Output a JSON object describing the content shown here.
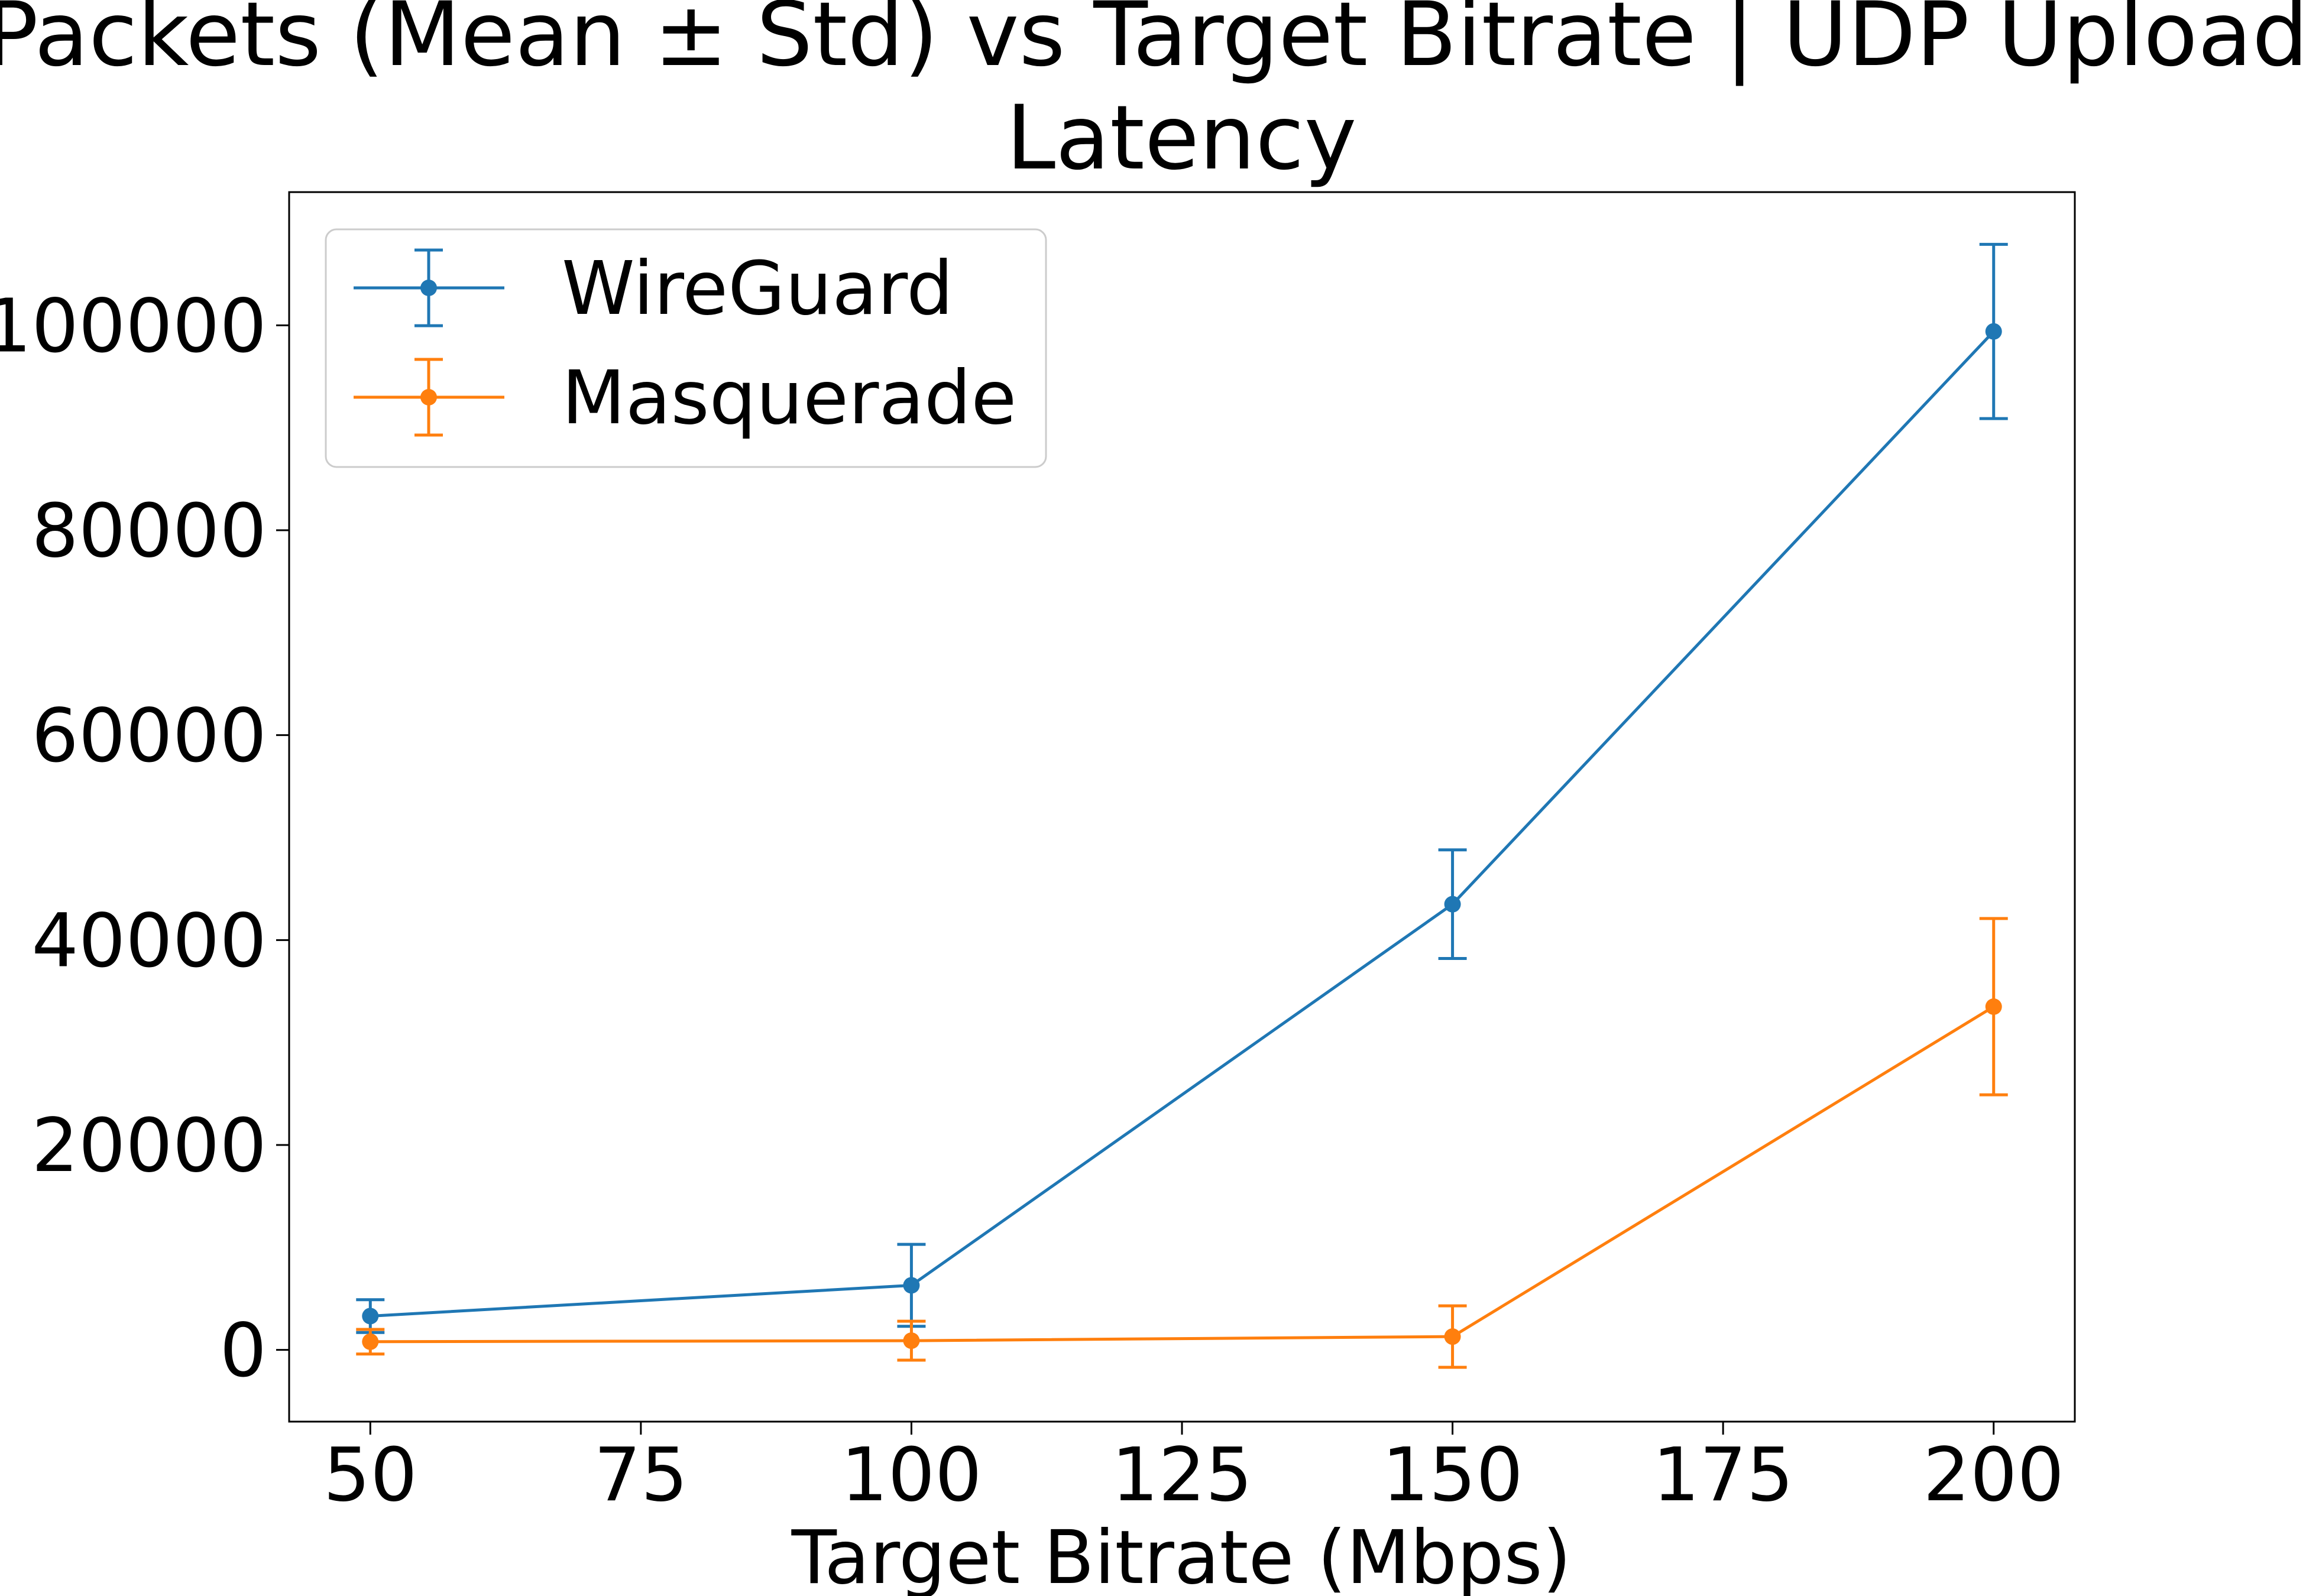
{
  "chart_data": {
    "type": "line",
    "title_line1": "Lost Packets (Mean ± Std) vs Target Bitrate | UDP Upload Loss |",
    "title_line2": "Latency",
    "xlabel": "Target Bitrate (Mbps)",
    "ylabel": "",
    "xlim": [
      42.5,
      207.5
    ],
    "ylim": [
      -7000,
      113000
    ],
    "xticks": [
      50,
      75,
      100,
      125,
      150,
      175,
      200
    ],
    "yticks": [
      0,
      20000,
      40000,
      60000,
      80000,
      100000
    ],
    "grid": false,
    "legend_position": "top-left",
    "x": [
      50,
      100,
      150,
      200
    ],
    "series": [
      {
        "name": "WireGuard",
        "color": "#1f77b4",
        "values": [
          3300,
          6300,
          43500,
          99400
        ],
        "std": [
          1600,
          4000,
          5300,
          8500
        ]
      },
      {
        "name": "Masquerade",
        "color": "#ff7f0e",
        "values": [
          800,
          900,
          1300,
          33500
        ],
        "std": [
          1200,
          1900,
          3000,
          8600
        ]
      }
    ]
  }
}
